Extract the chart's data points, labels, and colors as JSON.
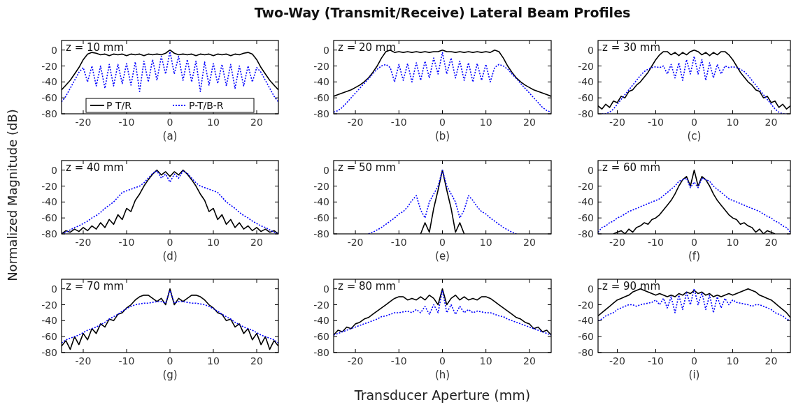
{
  "chart_data": [
    {
      "type": "line",
      "xlabel": "(a)",
      "annotations": [
        "z = 10 mm"
      ],
      "legend": "bottom",
      "xlim": [
        -25,
        25
      ],
      "ylim": [
        -80,
        12
      ],
      "xticks": [
        -20,
        -10,
        0,
        10,
        20
      ],
      "yticks": [
        -80,
        -60,
        -40,
        -20,
        0
      ],
      "x": [
        -25,
        -24,
        -23,
        -22,
        -21,
        -20,
        -19,
        -18,
        -17,
        -16,
        -15,
        -14,
        -13,
        -12,
        -11,
        -10,
        -9,
        -8,
        -7,
        -6,
        -5,
        -4,
        -3,
        -2,
        -1,
        0,
        1,
        2,
        3,
        4,
        5,
        6,
        7,
        8,
        9,
        10,
        11,
        12,
        13,
        14,
        15,
        16,
        17,
        18,
        19,
        20,
        21,
        22,
        23,
        24,
        25
      ],
      "series": [
        {
          "name": "P T/R",
          "color": "#000000",
          "line_style": "solid",
          "values": [
            -50,
            -44,
            -38,
            -30,
            -22,
            -12,
            -5,
            -3,
            -4,
            -6,
            -5,
            -7,
            -5,
            -6,
            -5,
            -7,
            -5,
            -6,
            -5,
            -7,
            -5,
            -6,
            -5,
            -6,
            -4,
            0,
            -4,
            -6,
            -5,
            -6,
            -5,
            -7,
            -5,
            -6,
            -5,
            -7,
            -5,
            -6,
            -5,
            -7,
            -5,
            -6,
            -4,
            -3,
            -5,
            -12,
            -22,
            -30,
            -38,
            -44,
            -50
          ]
        },
        {
          "name": "P-T/B-R",
          "color": "#0000ff",
          "line_style": "dotted",
          "values": [
            -65,
            -58,
            -48,
            -38,
            -28,
            -22,
            -40,
            -20,
            -45,
            -20,
            -48,
            -18,
            -45,
            -18,
            -42,
            -17,
            -44,
            -15,
            -52,
            -14,
            -40,
            -12,
            -38,
            -8,
            -30,
            -2,
            -30,
            -8,
            -38,
            -12,
            -40,
            -14,
            -52,
            -15,
            -44,
            -17,
            -42,
            -18,
            -45,
            -18,
            -48,
            -20,
            -45,
            -20,
            -40,
            -22,
            -28,
            -38,
            -48,
            -58,
            -65
          ]
        }
      ]
    },
    {
      "type": "line",
      "title": "Two-Way (Transmit/Receive) Lateral Beam Profiles",
      "xlabel": "(b)",
      "annotations": [
        "z = 20 mm"
      ],
      "xlim": [
        -25,
        25
      ],
      "ylim": [
        -80,
        12
      ],
      "xticks": [
        -20,
        -10,
        0,
        10,
        20
      ],
      "yticks": [
        -80,
        -60,
        -40,
        -20,
        0
      ],
      "x": [
        -25,
        -24,
        -23,
        -22,
        -21,
        -20,
        -19,
        -18,
        -17,
        -16,
        -15,
        -14,
        -13,
        -12,
        -11,
        -10,
        -9,
        -8,
        -7,
        -6,
        -5,
        -4,
        -3,
        -2,
        -1,
        0,
        1,
        2,
        3,
        4,
        5,
        6,
        7,
        8,
        9,
        10,
        11,
        12,
        13,
        14,
        15,
        16,
        17,
        18,
        19,
        20,
        21,
        22,
        23,
        24,
        25
      ],
      "series": [
        {
          "color": "#000000",
          "line_style": "solid",
          "values": [
            -58,
            -56,
            -54,
            -52,
            -50,
            -47,
            -44,
            -40,
            -35,
            -28,
            -20,
            -10,
            -2,
            0,
            -3,
            -2,
            -3,
            -2,
            -3,
            -2,
            -3,
            -2,
            -3,
            -2,
            -2,
            0,
            -2,
            -2,
            -3,
            -2,
            -3,
            -2,
            -3,
            -2,
            -3,
            -2,
            -3,
            0,
            -2,
            -10,
            -20,
            -28,
            -35,
            -40,
            -44,
            -47,
            -50,
            -52,
            -54,
            -56,
            -58
          ]
        },
        {
          "color": "#0000ff",
          "line_style": "dotted",
          "values": [
            -78,
            -76,
            -72,
            -66,
            -60,
            -54,
            -48,
            -42,
            -36,
            -30,
            -24,
            -20,
            -18,
            -22,
            -40,
            -18,
            -38,
            -17,
            -40,
            -16,
            -38,
            -14,
            -35,
            -10,
            -30,
            -3,
            -30,
            -10,
            -35,
            -14,
            -38,
            -16,
            -40,
            -17,
            -38,
            -18,
            -40,
            -22,
            -18,
            -20,
            -24,
            -30,
            -36,
            -42,
            -48,
            -54,
            -60,
            -66,
            -72,
            -76,
            -78
          ]
        }
      ]
    },
    {
      "type": "line",
      "xlabel": "(c)",
      "annotations": [
        "z = 30 mm"
      ],
      "xlim": [
        -25,
        25
      ],
      "ylim": [
        -80,
        12
      ],
      "xticks": [
        -20,
        -10,
        0,
        10,
        20
      ],
      "yticks": [
        -80,
        -60,
        -40,
        -20,
        0
      ],
      "x": [
        -25,
        -24,
        -23,
        -22,
        -21,
        -20,
        -19,
        -18,
        -17,
        -16,
        -15,
        -14,
        -13,
        -12,
        -11,
        -10,
        -9,
        -8,
        -7,
        -6,
        -5,
        -4,
        -3,
        -2,
        -1,
        0,
        1,
        2,
        3,
        4,
        5,
        6,
        7,
        8,
        9,
        10,
        11,
        12,
        13,
        14,
        15,
        16,
        17,
        18,
        19,
        20,
        21,
        22,
        23,
        24,
        25
      ],
      "series": [
        {
          "color": "#000000",
          "line_style": "solid",
          "values": [
            -70,
            -74,
            -68,
            -72,
            -64,
            -66,
            -58,
            -60,
            -52,
            -50,
            -44,
            -40,
            -34,
            -28,
            -20,
            -12,
            -6,
            -2,
            -2,
            -6,
            -3,
            -7,
            -3,
            -6,
            -2,
            0,
            -2,
            -6,
            -3,
            -7,
            -3,
            -6,
            -2,
            -2,
            -6,
            -12,
            -20,
            -28,
            -34,
            -40,
            -44,
            -50,
            -52,
            -60,
            -58,
            -66,
            -64,
            -72,
            -68,
            -74,
            -70
          ]
        },
        {
          "color": "#0000ff",
          "line_style": "dotted",
          "values": [
            null,
            -80,
            -80,
            -78,
            -74,
            -68,
            -62,
            -56,
            -50,
            -44,
            -38,
            -32,
            -27,
            -24,
            -22,
            -21,
            -22,
            -20,
            -30,
            -18,
            -35,
            -16,
            -38,
            -12,
            -30,
            -8,
            -30,
            -12,
            -38,
            -16,
            -35,
            -18,
            -30,
            -20,
            -22,
            -21,
            -22,
            -24,
            -27,
            -32,
            -38,
            -44,
            -50,
            -56,
            -62,
            -68,
            -74,
            -78,
            -80,
            -80,
            null
          ]
        }
      ]
    },
    {
      "type": "line",
      "xlabel": "(d)",
      "ylabel": "Normalized Magnitude (dB)",
      "annotations": [
        "z = 40 mm"
      ],
      "xlim": [
        -25,
        25
      ],
      "ylim": [
        -80,
        12
      ],
      "xticks": [
        -20,
        -10,
        0,
        10,
        20
      ],
      "yticks": [
        -80,
        -60,
        -40,
        -20,
        0
      ],
      "x": [
        -25,
        -24,
        -23,
        -22,
        -21,
        -20,
        -19,
        -18,
        -17,
        -16,
        -15,
        -14,
        -13,
        -12,
        -11,
        -10,
        -9,
        -8,
        -7,
        -6,
        -5,
        -4,
        -3,
        -2,
        -1,
        0,
        1,
        2,
        3,
        4,
        5,
        6,
        7,
        8,
        9,
        10,
        11,
        12,
        13,
        14,
        15,
        16,
        17,
        18,
        19,
        20,
        21,
        22,
        23,
        24,
        25
      ],
      "series": [
        {
          "color": "#000000",
          "line_style": "solid",
          "values": [
            -80,
            -76,
            -78,
            -74,
            -77,
            -72,
            -76,
            -70,
            -74,
            -66,
            -72,
            -62,
            -68,
            -56,
            -62,
            -48,
            -52,
            -38,
            -30,
            -20,
            -12,
            -5,
            0,
            -6,
            -2,
            -8,
            -2,
            -6,
            0,
            -5,
            -12,
            -20,
            -30,
            -38,
            -52,
            -48,
            -62,
            -56,
            -68,
            -62,
            -72,
            -66,
            -74,
            -70,
            -76,
            -72,
            -77,
            -74,
            -78,
            -76,
            -80
          ]
        },
        {
          "color": "#0000ff",
          "line_style": "dotted",
          "values": [
            -80,
            -78,
            -75,
            -72,
            -70,
            -67,
            -64,
            -60,
            -57,
            -53,
            -48,
            -44,
            -40,
            -34,
            -28,
            -26,
            -24,
            -22,
            -20,
            -16,
            -10,
            -4,
            -1,
            -10,
            -5,
            -15,
            -5,
            -10,
            -1,
            -4,
            -10,
            -16,
            -20,
            -22,
            -24,
            -26,
            -28,
            -34,
            -40,
            -44,
            -48,
            -53,
            -57,
            -60,
            -64,
            -67,
            -70,
            -72,
            -75,
            -78,
            -80
          ]
        }
      ]
    },
    {
      "type": "line",
      "xlabel": "(e)",
      "annotations": [
        "z = 50 mm"
      ],
      "xlim": [
        -25,
        25
      ],
      "ylim": [
        -80,
        12
      ],
      "xticks": [
        -20,
        -10,
        0,
        10,
        20
      ],
      "yticks": [
        -80,
        -60,
        -40,
        -20,
        0
      ],
      "series": [
        {
          "color": "#000000",
          "line_style": "solid",
          "x": [
            -5,
            -4,
            -3,
            -2,
            -1,
            0,
            1,
            2,
            3,
            4,
            5
          ],
          "values": [
            -80,
            -66,
            -78,
            -48,
            -25,
            0,
            -25,
            -48,
            -78,
            -66,
            -80
          ]
        },
        {
          "color": "#0000ff",
          "line_style": "dotted",
          "x": [
            -17,
            -16,
            -15,
            -14,
            -13,
            -12,
            -11,
            -10,
            -9,
            -8,
            -7,
            -6,
            -5,
            -4,
            -3,
            -2,
            -1,
            0,
            1,
            2,
            3,
            4,
            5,
            6,
            7,
            8,
            9,
            10,
            11,
            12,
            13,
            14,
            15,
            16,
            17
          ],
          "values": [
            -80,
            -78,
            -75,
            -72,
            -68,
            -64,
            -60,
            -55,
            -52,
            -46,
            -38,
            -32,
            -50,
            -60,
            -40,
            -30,
            -20,
            0,
            -20,
            -30,
            -40,
            -60,
            -50,
            -32,
            -38,
            -46,
            -52,
            -55,
            -60,
            -64,
            -68,
            -72,
            -75,
            -78,
            -80
          ]
        }
      ]
    },
    {
      "type": "line",
      "xlabel": "(f)",
      "annotations": [
        "z = 60 mm"
      ],
      "xlim": [
        -25,
        25
      ],
      "ylim": [
        -80,
        12
      ],
      "xticks": [
        -20,
        -10,
        0,
        10,
        20
      ],
      "yticks": [
        -80,
        -60,
        -40,
        -20,
        0
      ],
      "x": [
        -25,
        -24,
        -23,
        -22,
        -21,
        -20,
        -19,
        -18,
        -17,
        -16,
        -15,
        -14,
        -13,
        -12,
        -11,
        -10,
        -9,
        -8,
        -7,
        -6,
        -5,
        -4,
        -3,
        -2,
        -1,
        0,
        1,
        2,
        3,
        4,
        5,
        6,
        7,
        8,
        9,
        10,
        11,
        12,
        13,
        14,
        15,
        16,
        17,
        18,
        19,
        20,
        21,
        22,
        23,
        24,
        25
      ],
      "series": [
        {
          "color": "#000000",
          "line_style": "solid",
          "values": [
            null,
            null,
            null,
            null,
            -80,
            -78,
            -76,
            -80,
            -74,
            -78,
            -72,
            -70,
            -66,
            -68,
            -62,
            -60,
            -56,
            -50,
            -44,
            -38,
            -30,
            -20,
            -12,
            -8,
            -20,
            0,
            -20,
            -8,
            -12,
            -20,
            -30,
            -38,
            -44,
            -50,
            -56,
            -60,
            -62,
            -68,
            -66,
            -70,
            -72,
            -78,
            -74,
            -80,
            -76,
            -78,
            -80,
            null,
            null,
            null,
            null
          ]
        },
        {
          "color": "#0000ff",
          "line_style": "dotted",
          "values": [
            -78,
            -72,
            -70,
            -66,
            -64,
            -60,
            -58,
            -55,
            -52,
            -50,
            -48,
            -46,
            -44,
            -42,
            -40,
            -38,
            -36,
            -32,
            -28,
            -24,
            -20,
            -14,
            -12,
            -10,
            -22,
            -15,
            -22,
            -10,
            -12,
            -14,
            -20,
            -24,
            -28,
            -32,
            -36,
            -38,
            -40,
            -42,
            -44,
            -46,
            -48,
            -50,
            -52,
            -55,
            -58,
            -60,
            -64,
            -66,
            -70,
            -72,
            -78
          ]
        }
      ]
    },
    {
      "type": "line",
      "xlabel": "(g)",
      "annotations": [
        "z = 70 mm"
      ],
      "xlim": [
        -25,
        25
      ],
      "ylim": [
        -80,
        12
      ],
      "xticks": [
        -20,
        -10,
        0,
        10,
        20
      ],
      "yticks": [
        -80,
        -60,
        -40,
        -20,
        0
      ],
      "x": [
        -25,
        -24,
        -23,
        -22,
        -21,
        -20,
        -19,
        -18,
        -17,
        -16,
        -15,
        -14,
        -13,
        -12,
        -11,
        -10,
        -9,
        -8,
        -7,
        -6,
        -5,
        -4,
        -3,
        -2,
        -1,
        0,
        1,
        2,
        3,
        4,
        5,
        6,
        7,
        8,
        9,
        10,
        11,
        12,
        13,
        14,
        15,
        16,
        17,
        18,
        19,
        20,
        21,
        22,
        23,
        24,
        25
      ],
      "series": [
        {
          "color": "#000000",
          "line_style": "solid",
          "values": [
            -72,
            -65,
            -76,
            -60,
            -70,
            -56,
            -64,
            -50,
            -56,
            -44,
            -48,
            -38,
            -40,
            -32,
            -30,
            -24,
            -20,
            -14,
            -10,
            -8,
            -8,
            -12,
            -16,
            -12,
            -20,
            0,
            -20,
            -12,
            -16,
            -12,
            -8,
            -8,
            -10,
            -14,
            -20,
            -24,
            -30,
            -32,
            -40,
            -38,
            -48,
            -44,
            -56,
            -50,
            -64,
            -56,
            -70,
            -60,
            -76,
            -65,
            -72
          ]
        },
        {
          "color": "#0000ff",
          "line_style": "dotted",
          "values": [
            -68,
            -64,
            -62,
            -60,
            -58,
            -55,
            -52,
            -50,
            -48,
            -45,
            -42,
            -38,
            -35,
            -32,
            -28,
            -25,
            -22,
            -20,
            -19,
            -18,
            -18,
            -17,
            -16,
            -16,
            -18,
            -2,
            -18,
            -16,
            -16,
            -17,
            -18,
            -18,
            -19,
            -20,
            -22,
            -25,
            -28,
            -32,
            -35,
            -38,
            -42,
            -45,
            -48,
            -50,
            -52,
            -55,
            -58,
            -60,
            -62,
            -64,
            -68
          ]
        }
      ]
    },
    {
      "type": "line",
      "xlabel": "(h)",
      "annotations": [
        "z = 80 mm",
        "Transducer Aperture (mm)"
      ],
      "xlim": [
        -25,
        25
      ],
      "ylim": [
        -80,
        12
      ],
      "xticks": [
        -20,
        -10,
        0,
        10,
        20
      ],
      "yticks": [
        -80,
        -60,
        -40,
        -20,
        0
      ],
      "x": [
        -25,
        -24,
        -23,
        -22,
        -21,
        -20,
        -19,
        -18,
        -17,
        -16,
        -15,
        -14,
        -13,
        -12,
        -11,
        -10,
        -9,
        -8,
        -7,
        -6,
        -5,
        -4,
        -3,
        -2,
        -1,
        0,
        1,
        2,
        3,
        4,
        5,
        6,
        7,
        8,
        9,
        10,
        11,
        12,
        13,
        14,
        15,
        16,
        17,
        18,
        19,
        20,
        21,
        22,
        23,
        24,
        25
      ],
      "series": [
        {
          "color": "#000000",
          "line_style": "solid",
          "values": [
            -58,
            -52,
            -54,
            -48,
            -50,
            -44,
            -42,
            -38,
            -36,
            -32,
            -28,
            -24,
            -20,
            -16,
            -12,
            -10,
            -10,
            -14,
            -12,
            -14,
            -10,
            -14,
            -8,
            -12,
            -20,
            0,
            -20,
            -12,
            -8,
            -14,
            -10,
            -14,
            -12,
            -14,
            -10,
            -10,
            -12,
            -16,
            -20,
            -24,
            -28,
            -32,
            -36,
            -38,
            -42,
            -44,
            -50,
            -48,
            -54,
            -52,
            -58
          ]
        },
        {
          "color": "#0000ff",
          "line_style": "dotted",
          "values": [
            -58,
            -56,
            -54,
            -52,
            -50,
            -48,
            -46,
            -44,
            -42,
            -40,
            -38,
            -35,
            -34,
            -32,
            -30,
            -30,
            -29,
            -28,
            -30,
            -26,
            -30,
            -22,
            -32,
            -20,
            -30,
            -2,
            -30,
            -20,
            -32,
            -22,
            -30,
            -26,
            -30,
            -28,
            -29,
            -30,
            -30,
            -32,
            -34,
            -35,
            -38,
            -40,
            -42,
            -44,
            -46,
            -48,
            -50,
            -52,
            -54,
            -56,
            -58
          ]
        }
      ]
    },
    {
      "type": "line",
      "xlabel": "(i)",
      "annotations": [
        "z = 90 mm"
      ],
      "xlim": [
        -25,
        25
      ],
      "ylim": [
        -80,
        12
      ],
      "xticks": [
        -20,
        -10,
        0,
        10,
        20
      ],
      "yticks": [
        -80,
        -60,
        -40,
        -20,
        0
      ],
      "x": [
        -25,
        -24,
        -23,
        -22,
        -21,
        -20,
        -19,
        -18,
        -17,
        -16,
        -15,
        -14,
        -13,
        -12,
        -11,
        -10,
        -9,
        -8,
        -7,
        -6,
        -5,
        -4,
        -3,
        -2,
        -1,
        0,
        1,
        2,
        3,
        4,
        5,
        6,
        7,
        8,
        9,
        10,
        11,
        12,
        13,
        14,
        15,
        16,
        17,
        18,
        19,
        20,
        21,
        22,
        23,
        24,
        25
      ],
      "series": [
        {
          "color": "#000000",
          "line_style": "solid",
          "values": [
            -34,
            -30,
            -26,
            -22,
            -18,
            -14,
            -12,
            -10,
            -8,
            -4,
            -2,
            0,
            -2,
            -4,
            -6,
            -8,
            -6,
            -8,
            -10,
            -8,
            -10,
            -6,
            -8,
            -4,
            -6,
            -2,
            -6,
            -4,
            -8,
            -6,
            -10,
            -8,
            -10,
            -8,
            -6,
            -8,
            -6,
            -4,
            -2,
            0,
            -2,
            -4,
            -8,
            -10,
            -12,
            -14,
            -18,
            -22,
            -26,
            -30,
            -36
          ]
        },
        {
          "color": "#0000ff",
          "line_style": "dotted",
          "values": [
            -40,
            -38,
            -34,
            -32,
            -30,
            -26,
            -24,
            -22,
            -20,
            -20,
            -22,
            -20,
            -19,
            -18,
            -17,
            -14,
            -20,
            -12,
            -24,
            -10,
            -30,
            -8,
            -26,
            -5,
            -20,
            0,
            -20,
            -5,
            -26,
            -8,
            -30,
            -10,
            -24,
            -12,
            -20,
            -14,
            -17,
            -18,
            -19,
            -20,
            -22,
            -20,
            -20,
            -22,
            -24,
            -26,
            -30,
            -32,
            -34,
            -38,
            -40
          ]
        }
      ]
    }
  ]
}
